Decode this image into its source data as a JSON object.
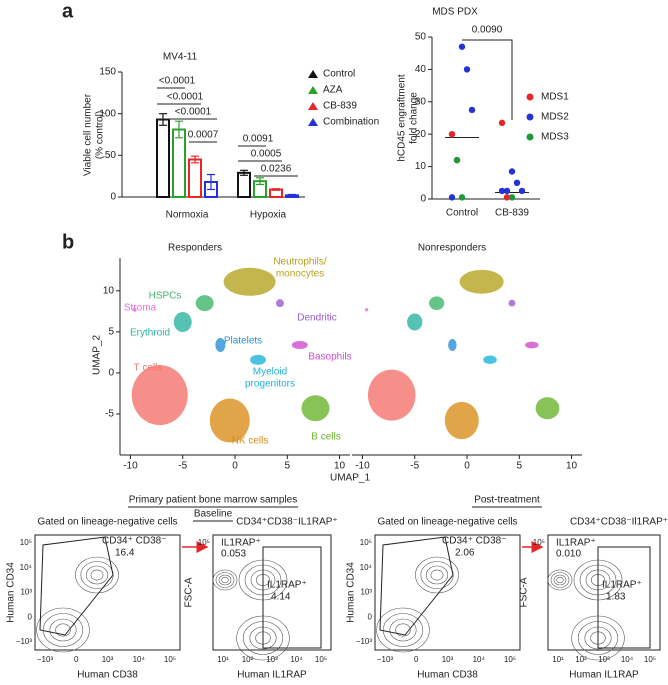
{
  "panel_labels": [
    "a",
    "b"
  ],
  "chart_data": [
    {
      "type": "bar",
      "title": "MV4-11",
      "categories": [
        "Normoxia",
        "Hypoxia"
      ],
      "series": [
        {
          "name": "Control",
          "color": "#111111",
          "values": [
            93,
            29
          ],
          "errors": [
            7,
            3
          ]
        },
        {
          "name": "AZA",
          "color": "#2ca02c",
          "values": [
            81,
            19
          ],
          "errors": [
            10,
            4
          ]
        },
        {
          "name": "CB-839",
          "color": "#e8262a",
          "values": [
            45,
            9
          ],
          "errors": [
            4,
            1
          ]
        },
        {
          "name": "Combination",
          "color": "#2433d6",
          "values": [
            18,
            2
          ],
          "errors": [
            9,
            1
          ]
        }
      ],
      "ylabel": [
        "Viable cell number",
        "(% control)"
      ],
      "ylim": [
        0,
        150
      ],
      "yticks": [
        0,
        50,
        100,
        150
      ],
      "annotations": [
        "<0.0001",
        "<0.0001",
        "<0.0001",
        "0.0007",
        "0.0091",
        "0.0005",
        "0.0236"
      ]
    },
    {
      "type": "strip",
      "title": "MDS PDX",
      "categories": [
        "Control",
        "CB-839"
      ],
      "series": [
        {
          "name": "MDS1",
          "color": "#e8262a",
          "x": [
            "Control",
            "Control",
            "CB-839",
            "CB-839"
          ],
          "values": [
            20,
            12,
            23.5,
            0.5
          ]
        },
        {
          "name": "MDS2",
          "color": "#2433d6",
          "x": [
            "Control",
            "Control",
            "Control",
            "Control",
            "CB-839",
            "CB-839",
            "CB-839",
            "CB-839",
            "CB-839"
          ],
          "values": [
            47,
            40,
            27.5,
            0.5,
            8.5,
            5,
            2.5,
            2.5,
            2.5
          ]
        },
        {
          "name": "MDS3",
          "color": "#1e9a3a",
          "x": [
            "Control",
            "Control",
            "CB-839"
          ],
          "values": [
            12,
            0.5,
            0.5
          ]
        }
      ],
      "medians": [
        19,
        2
      ],
      "annotation": "0.0090",
      "ylabel": [
        "hCD45 engraftment",
        "fold change"
      ],
      "ylim": [
        0,
        50
      ],
      "yticks": [
        0,
        10,
        20,
        30,
        40,
        50
      ]
    },
    {
      "type": "umap",
      "panels": [
        "Responders",
        "Nonresponders"
      ],
      "xlabel": "UMAP_1",
      "ylabel": "UMAP_2",
      "xlim": [
        -11,
        11
      ],
      "ylim": [
        -10,
        14
      ],
      "xticks": [
        -10,
        -5,
        0,
        5,
        10
      ],
      "yticks": [
        -5,
        0,
        5,
        10
      ],
      "clusters": [
        {
          "name": "T cells",
          "color": "#f4736b",
          "x": -7.2,
          "y": -2.7
        },
        {
          "name": "NK cells",
          "color": "#d98d1a",
          "x": -0.5,
          "y": -5.8
        },
        {
          "name": "B cells",
          "color": "#6ab42d",
          "x": 7.7,
          "y": -4.3
        },
        {
          "name": [
            "Neutrophils/",
            "monocytes"
          ],
          "color": "#b5a21f",
          "x": 1.4,
          "y": 11.1
        },
        {
          "name": "HSPCs",
          "color": "#3fb56a",
          "x": -2.9,
          "y": 8.5
        },
        {
          "name": "Erythroid",
          "color": "#2cb3a0",
          "x": -5.0,
          "y": 6.2
        },
        {
          "name": "Stroma",
          "color": "#e86fe0",
          "x": -9.6,
          "y": 7.7
        },
        {
          "name": "Dendritic",
          "color": "#9b59d0",
          "x": 4.3,
          "y": 8.5
        },
        {
          "name": "Platelets",
          "color": "#2a8fd6",
          "x": -1.4,
          "y": 3.4
        },
        {
          "name": [
            "Myeloid",
            "progenitors"
          ],
          "color": "#1fb3d9",
          "x": 2.2,
          "y": 1.6
        },
        {
          "name": "Basophils",
          "color": "#d24bd0",
          "x": 6.2,
          "y": 3.4
        }
      ]
    }
  ],
  "flow": {
    "header": "Primary patient bone marrow samples",
    "groups": [
      "Baseline",
      "Post-treatment"
    ],
    "panels": [
      {
        "title": "Gated on lineage-negative cells",
        "gates": [
          {
            "label": "CD34⁺ CD38⁻",
            "value": "16.4"
          }
        ],
        "xlabel": "Human CD38",
        "ylabel": "Human CD34",
        "xticks": [
          "−10³",
          "0",
          "10³",
          "10⁴",
          "10⁵"
        ],
        "yticks": [
          "10⁵",
          "10⁴",
          "10³",
          "0",
          "−10³"
        ]
      },
      {
        "title": "CD34⁺CD38⁻IL1RAP⁺",
        "gates": [
          {
            "label": "IL1RAP⁺",
            "value": "0.053"
          },
          {
            "label": "IL1RAP⁺",
            "value": "4.14"
          }
        ],
        "xlabel": "Human IL1RAP",
        "ylabel": "FSC-A",
        "xticks": [
          "10¹",
          "10²",
          "10³",
          "10⁴",
          "10⁵"
        ],
        "yticks": [
          "10⁵"
        ]
      },
      {
        "title": "Gated on lineage-negative cells",
        "gates": [
          {
            "label": "CD34⁺ CD38⁻",
            "value": "2.06"
          }
        ],
        "xlabel": "Human CD38",
        "ylabel": "Human CD34",
        "xticks": [
          "−10³",
          "0",
          "10³",
          "10⁴",
          "10⁵"
        ],
        "yticks": [
          "10⁵",
          "10⁴",
          "10³",
          "0",
          "−10³"
        ]
      },
      {
        "title": "CD34⁺CD38⁻Il1RAP⁺",
        "gates": [
          {
            "label": "IL1RAP⁺",
            "value": "0.010"
          },
          {
            "label": "IL1RAP⁺",
            "value": "1.83"
          }
        ],
        "xlabel": "Human IL1RAP",
        "ylabel": "FSC-A",
        "xticks": [
          "10¹",
          "10²",
          "10³",
          "10⁴",
          "10⁵"
        ],
        "yticks": [
          "10⁵"
        ]
      }
    ]
  }
}
